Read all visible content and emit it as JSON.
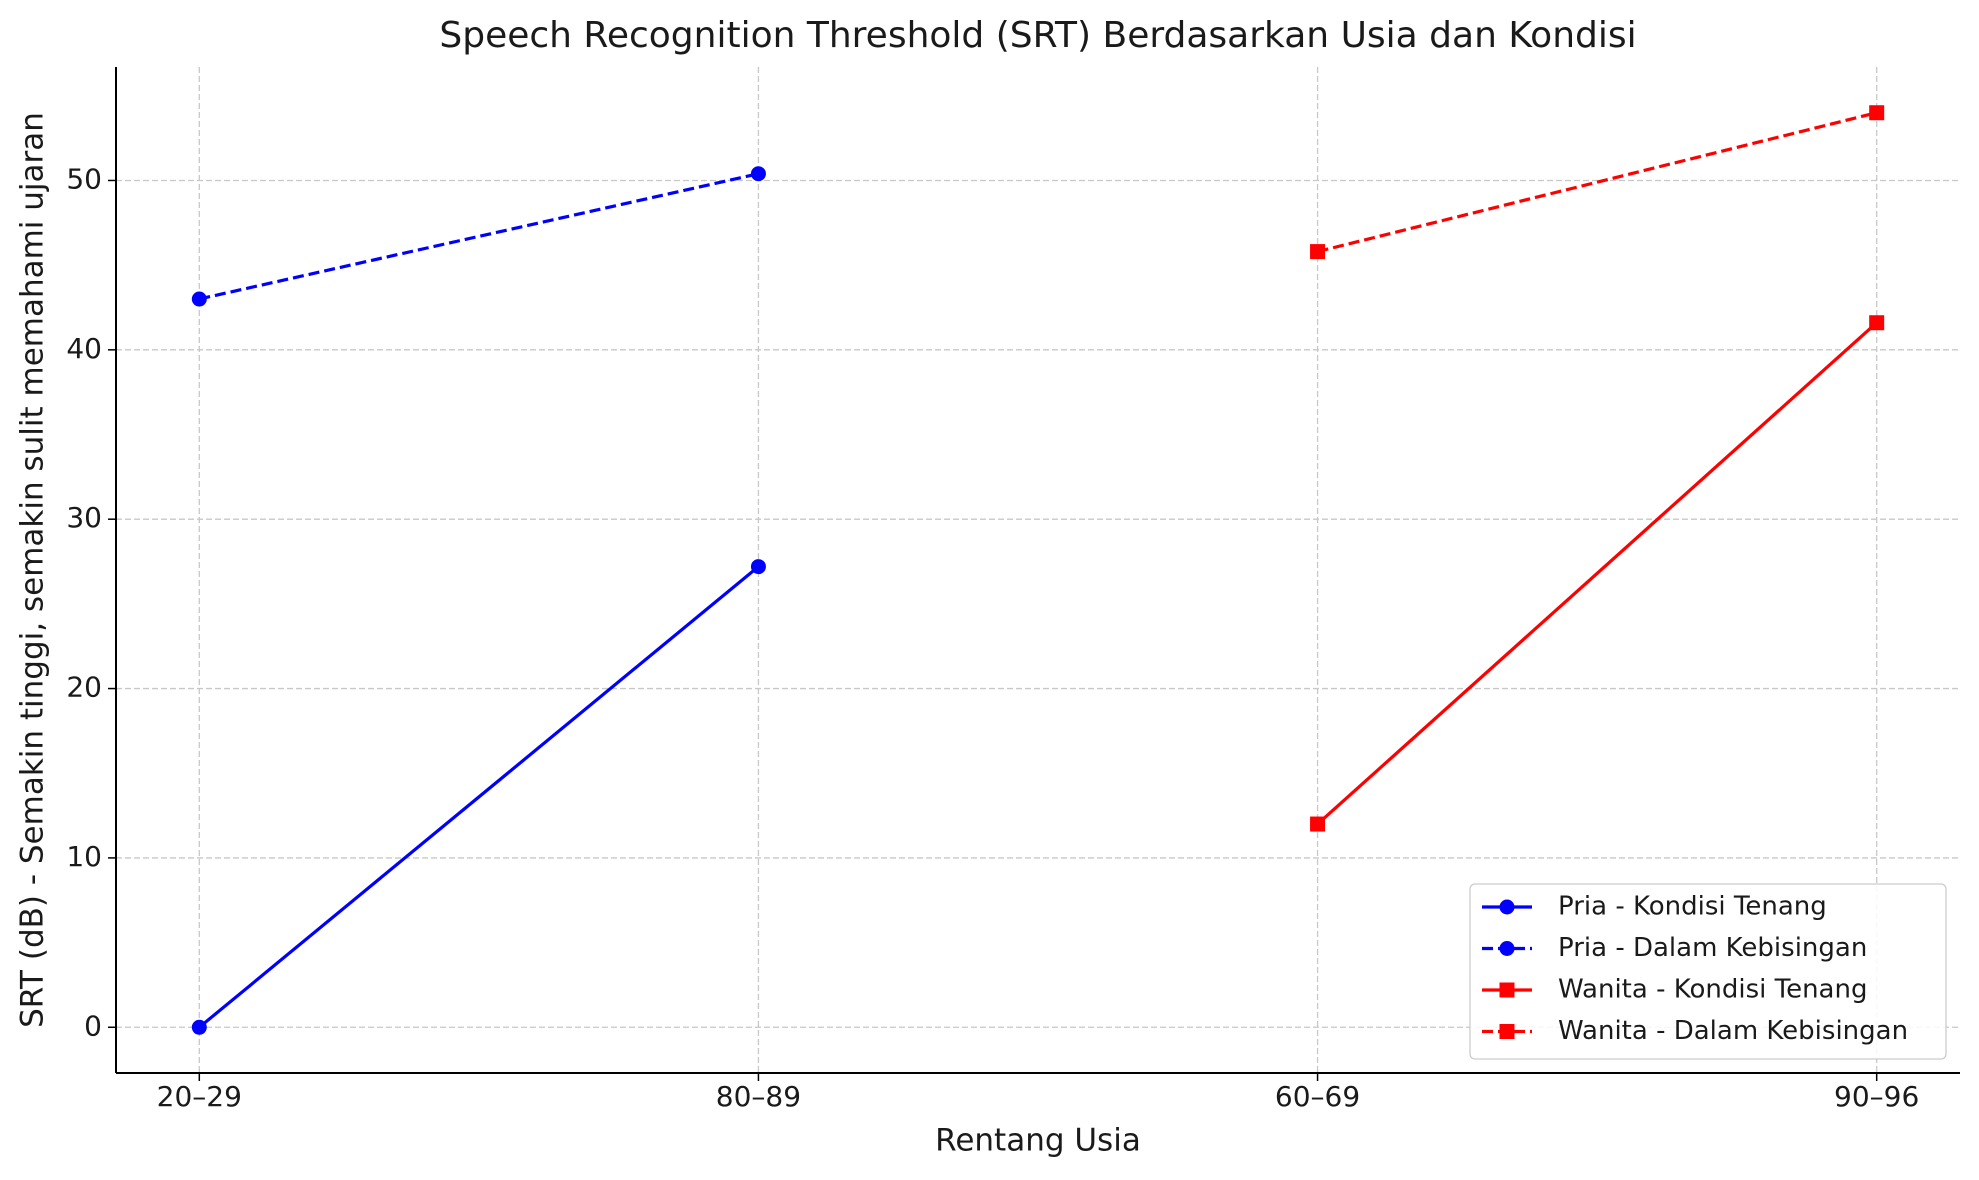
{
  "chart_data": {
    "type": "line",
    "title": "Speech Recognition Threshold (SRT) Berdasarkan Usia dan Kondisi",
    "x_label": "Rentang Usia",
    "y_label": "SRT (dB) - Semakin tinggi, semakin sulit memahami ujaran",
    "categories": [
      "20–29",
      "80–89",
      "60–69",
      "90–96"
    ],
    "series": [
      {
        "name": "Pria - Kondisi Tenang",
        "color": "#0000ff",
        "marker": "circle",
        "linestyle": "solid",
        "values": [
          0,
          27.2,
          null,
          null
        ]
      },
      {
        "name": "Pria - Dalam Kebisingan",
        "color": "#0000ff",
        "marker": "circle",
        "linestyle": "dashed",
        "values": [
          43,
          50.4,
          null,
          null
        ]
      },
      {
        "name": "Wanita - Kondisi Tenang",
        "color": "#ff0000",
        "marker": "square",
        "linestyle": "solid",
        "values": [
          null,
          null,
          12,
          41.6
        ]
      },
      {
        "name": "Wanita - Dalam Kebisingan",
        "color": "#ff0000",
        "marker": "square",
        "linestyle": "dashed",
        "values": [
          null,
          null,
          45.8,
          54
        ]
      }
    ],
    "ylim": [
      -2.7,
      56.7
    ],
    "yticks": [
      0,
      10,
      20,
      30,
      40,
      50
    ],
    "grid": true,
    "legend": "lower right"
  }
}
